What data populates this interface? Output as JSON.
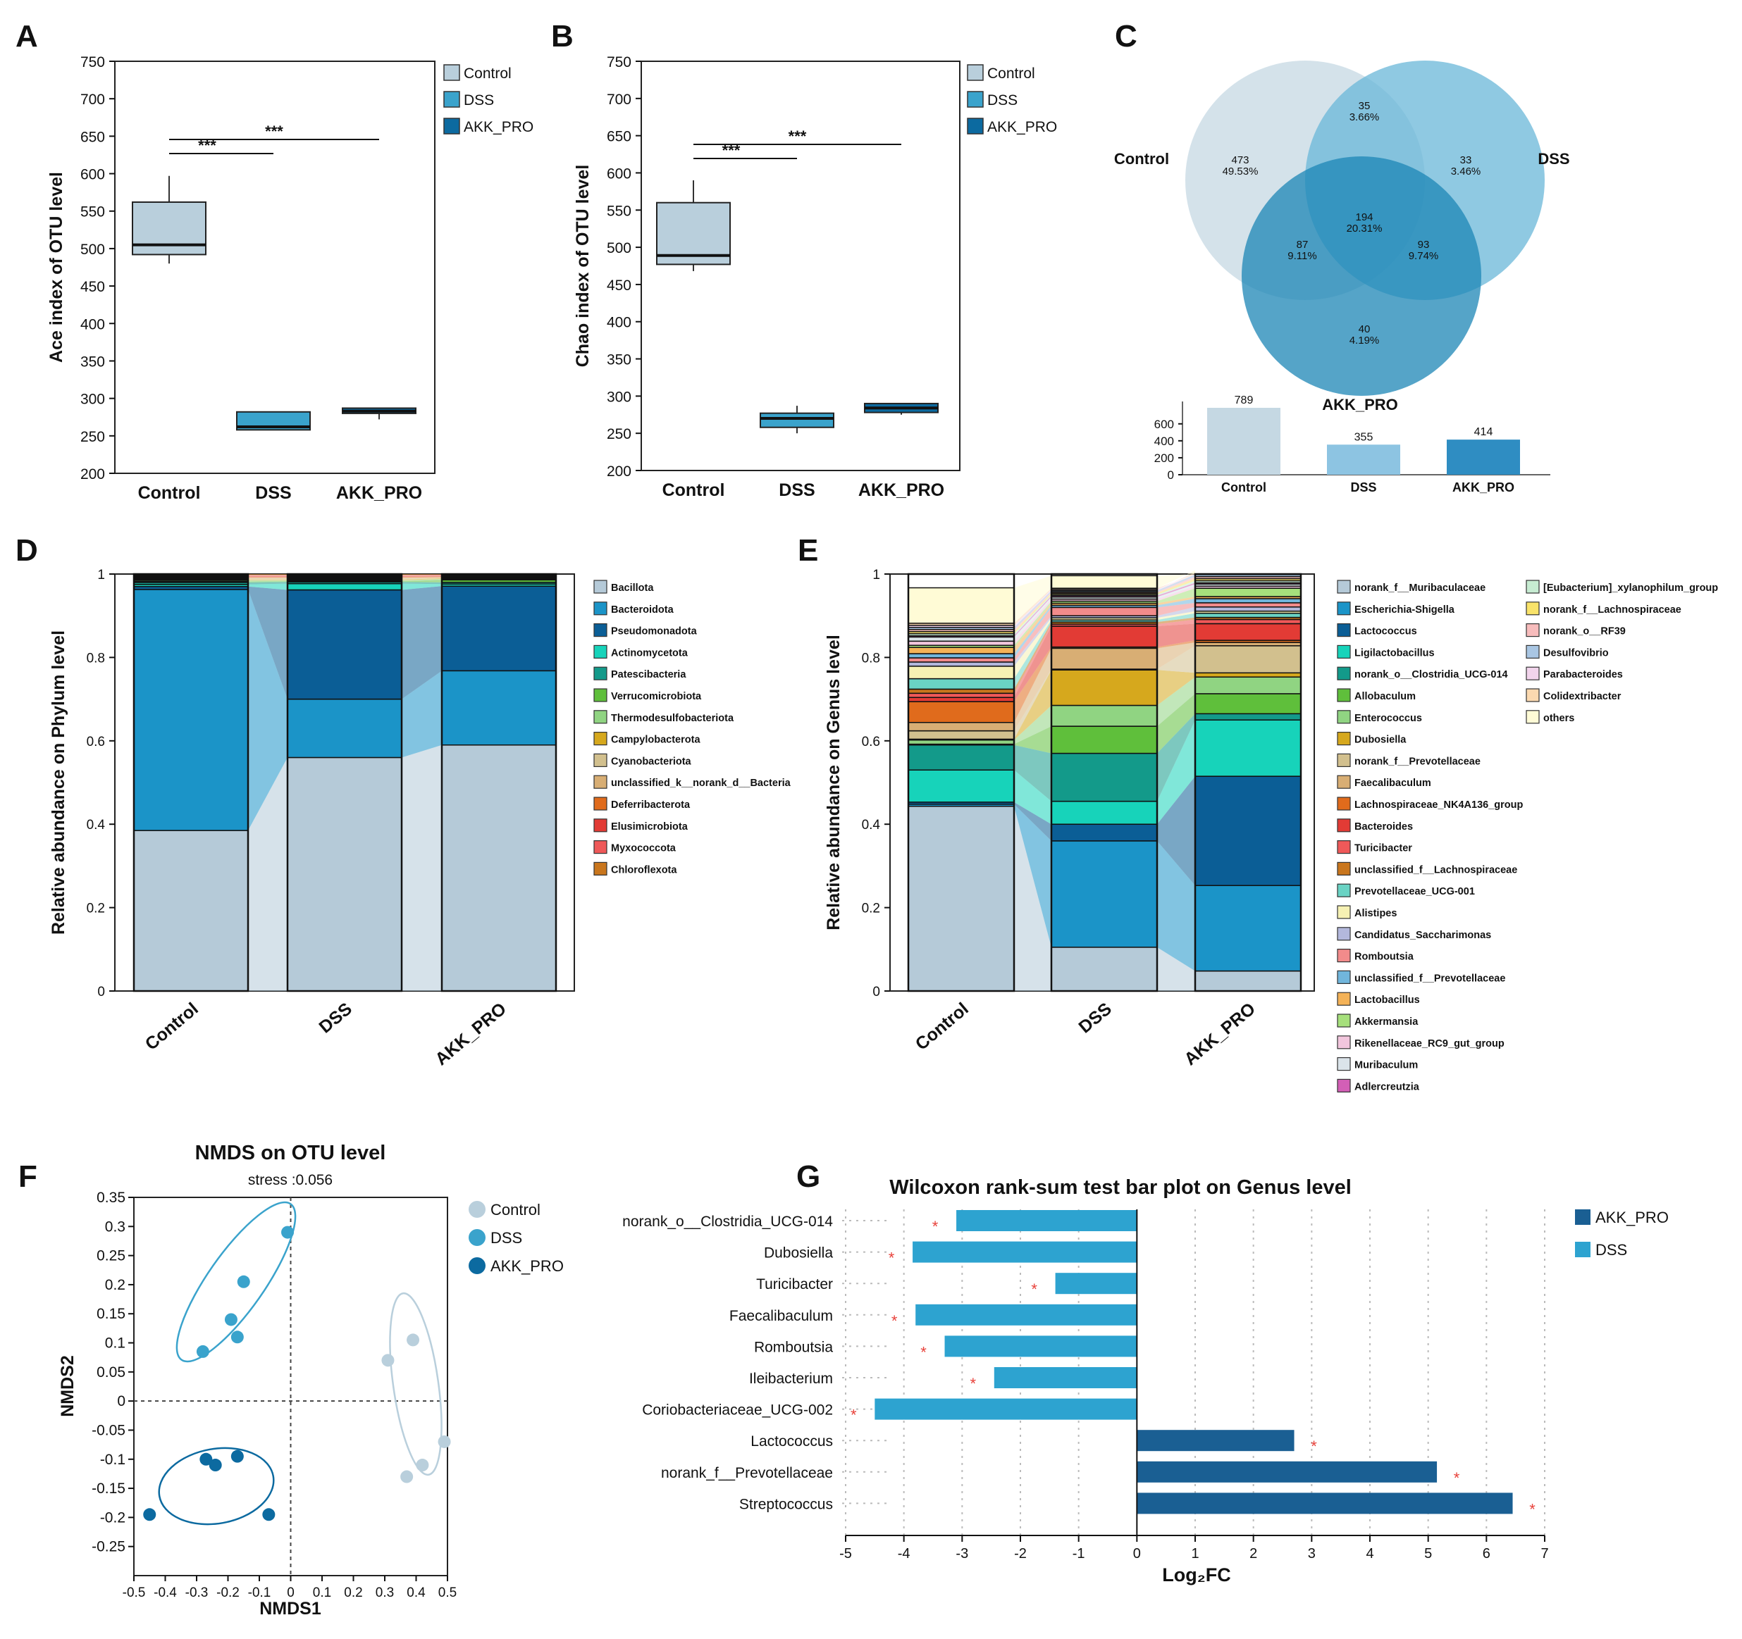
{
  "colors": {
    "control": "#b9cfdc",
    "dss": "#3aa3cc",
    "akk": "#0c6aa0",
    "venn_control": "#c5d8e3",
    "venn_dss": "#6ab7d8",
    "venn_akk": "#1c86b5",
    "g_akk": "#1a5f93",
    "g_dss": "#2da3d0",
    "sig": "#e8413a"
  },
  "chart_data": [
    {
      "panel": "A",
      "type": "box",
      "ylabel": "Ace index of OTU level",
      "yticks": [
        "750",
        "700",
        "650",
        "600",
        "550",
        "500",
        "450",
        "400",
        "350",
        "300",
        "250",
        "200"
      ],
      "ylim": [
        200,
        750
      ],
      "categories": [
        "Control",
        "DSS",
        "AKK_PRO"
      ],
      "boxes": [
        {
          "min": 480,
          "q1": 492,
          "median": 505,
          "q3": 562,
          "max": 597
        },
        {
          "min": 258,
          "q1": 258,
          "median": 262,
          "q3": 282,
          "max": 282
        },
        {
          "min": 272,
          "q1": 280,
          "median": 283,
          "q3": 287,
          "max": 287
        }
      ],
      "legend": [
        "Control",
        "DSS",
        "AKK_PRO"
      ],
      "sig": [
        {
          "label": "***",
          "from": "Control",
          "to": "DSS"
        },
        {
          "label": "***",
          "from": "Control",
          "to": "AKK_PRO"
        }
      ]
    },
    {
      "panel": "B",
      "type": "box",
      "ylabel": "Chao index of OTU level",
      "yticks": [
        "750",
        "700",
        "650",
        "600",
        "550",
        "500",
        "450",
        "400",
        "350",
        "300",
        "250",
        "200"
      ],
      "ylim": [
        200,
        750
      ],
      "categories": [
        "Control",
        "DSS",
        "AKK_PRO"
      ],
      "boxes": [
        {
          "min": 468,
          "q1": 477,
          "median": 489,
          "q3": 560,
          "max": 590
        },
        {
          "min": 250,
          "q1": 258,
          "median": 270,
          "q3": 277,
          "max": 287
        },
        {
          "min": 275,
          "q1": 278,
          "median": 284,
          "q3": 290,
          "max": 290
        }
      ],
      "legend": [
        "Control",
        "DSS",
        "AKK_PRO"
      ],
      "sig": [
        {
          "label": "***",
          "from": "Control",
          "to": "DSS"
        },
        {
          "label": "***",
          "from": "Control",
          "to": "AKK_PRO"
        }
      ]
    },
    {
      "panel": "C",
      "type": "venn",
      "sets": [
        "Control",
        "DSS",
        "AKK_PRO"
      ],
      "regions": [
        {
          "id": "control_only",
          "count": "473",
          "pct": "49.53%"
        },
        {
          "id": "control_dss",
          "count": "35",
          "pct": "3.66%"
        },
        {
          "id": "dss_only",
          "count": "33",
          "pct": "3.46%"
        },
        {
          "id": "all",
          "count": "194",
          "pct": "20.31%"
        },
        {
          "id": "control_akk",
          "count": "87",
          "pct": "9.11%"
        },
        {
          "id": "dss_akk",
          "count": "93",
          "pct": "9.74%"
        },
        {
          "id": "akk_only",
          "count": "40",
          "pct": "4.19%"
        }
      ],
      "totals": {
        "type": "bar",
        "categories": [
          "Control",
          "DSS",
          "AKK_PRO"
        ],
        "values": [
          789,
          355,
          414
        ],
        "labels": [
          "789",
          "355",
          "414"
        ],
        "yticks": [
          "600",
          "400",
          "200",
          "0"
        ],
        "ylim": [
          0,
          789
        ]
      }
    },
    {
      "panel": "D",
      "type": "stacked_bar",
      "ylabel": "Relative abundance on Phylum level",
      "yticks": [
        "1",
        "0.8",
        "0.6",
        "0.4",
        "0.2",
        "0"
      ],
      "categories": [
        "Control",
        "DSS",
        "AKK_PRO"
      ],
      "series": [
        {
          "name": "Bacillota",
          "color": "#b5cad8",
          "values": [
            0.385,
            0.56,
            0.59
          ]
        },
        {
          "name": "Bacteroidota",
          "color": "#1b94c8",
          "values": [
            0.578,
            0.14,
            0.178
          ]
        },
        {
          "name": "Pseudomonadota",
          "color": "#0b5e96",
          "values": [
            0.007,
            0.262,
            0.203
          ]
        },
        {
          "name": "Actinomycetota",
          "color": "#17d3ba",
          "values": [
            0.005,
            0.015,
            0.005
          ]
        },
        {
          "name": "Patescibacteria",
          "color": "#139a8a",
          "values": [
            0.005,
            0.004,
            0.004
          ]
        },
        {
          "name": "Verrucomicrobiota",
          "color": "#5fbf3b",
          "values": [
            0.002,
            0.002,
            0.006
          ]
        },
        {
          "name": "Thermodesulfobacteriota",
          "color": "#90d482",
          "values": [
            0.003,
            0.002,
            0.002
          ]
        },
        {
          "name": "Campylobacterota",
          "color": "#d6a81d",
          "values": [
            0.002,
            0.002,
            0.002
          ]
        },
        {
          "name": "Cyanobacteriota",
          "color": "#d2c08e",
          "values": [
            0.002,
            0.002,
            0.001
          ]
        },
        {
          "name": "unclassified_k__norank_d__Bacteria",
          "color": "#d8ae74",
          "values": [
            0.002,
            0.002,
            0.001
          ]
        },
        {
          "name": "Deferribacterota",
          "color": "#e06b1c",
          "values": [
            0.002,
            0.002,
            0.002
          ]
        },
        {
          "name": "Elusimicrobiota",
          "color": "#e23b35",
          "values": [
            0.002,
            0.002,
            0.002
          ]
        },
        {
          "name": "Myxococcota",
          "color": "#ef5959",
          "values": [
            0.002,
            0.002,
            0.002
          ]
        },
        {
          "name": "Chloroflexota",
          "color": "#c9761d",
          "values": [
            0.003,
            0.004,
            0.002
          ]
        }
      ]
    },
    {
      "panel": "E",
      "type": "stacked_bar",
      "ylabel": "Relative abundance on Genus level",
      "yticks": [
        "1",
        "0.8",
        "0.6",
        "0.4",
        "0.2",
        "0"
      ],
      "categories": [
        "Control",
        "DSS",
        "AKK_PRO"
      ],
      "series": [
        {
          "name": "norank_f__Muribaculaceae",
          "color": "#b5cad8",
          "values": [
            0.443,
            0.105,
            0.048
          ]
        },
        {
          "name": "Escherichia-Shigella",
          "color": "#1b94c8",
          "values": [
            0.005,
            0.255,
            0.205
          ]
        },
        {
          "name": "Lactococcus",
          "color": "#0b5e96",
          "values": [
            0.005,
            0.04,
            0.262
          ]
        },
        {
          "name": "Ligilactobacillus",
          "color": "#17d3ba",
          "values": [
            0.077,
            0.055,
            0.135
          ]
        },
        {
          "name": "norank_o__Clostridia_UCG-014",
          "color": "#139a8a",
          "values": [
            0.06,
            0.115,
            0.015
          ]
        },
        {
          "name": "Allobaculum",
          "color": "#5fbf3b",
          "values": [
            0.002,
            0.065,
            0.048
          ]
        },
        {
          "name": "Enterococcus",
          "color": "#90d482",
          "values": [
            0.01,
            0.05,
            0.04
          ]
        },
        {
          "name": "Dubosiella",
          "color": "#d6a81d",
          "values": [
            0.002,
            0.085,
            0.01
          ]
        },
        {
          "name": "norank_f__Prevotellaceae",
          "color": "#d2c08e",
          "values": [
            0.02,
            0.002,
            0.065
          ]
        },
        {
          "name": "Faecalibaculum",
          "color": "#d8ae74",
          "values": [
            0.02,
            0.05,
            0.008
          ]
        },
        {
          "name": "Lachnospiraceae_NK4A136_group",
          "color": "#e06b1c",
          "values": [
            0.05,
            0.003,
            0.005
          ]
        },
        {
          "name": "Bacteroides",
          "color": "#e23b35",
          "values": [
            0.01,
            0.05,
            0.04
          ]
        },
        {
          "name": "Turicibacter",
          "color": "#ef5959",
          "values": [
            0.01,
            0.005,
            0.01
          ]
        },
        {
          "name": "unclassified_f__Lachnospiraceae",
          "color": "#c9761d",
          "values": [
            0.01,
            0.005,
            0.005
          ]
        },
        {
          "name": "Prevotellaceae_UCG-001",
          "color": "#6ad3c4",
          "values": [
            0.025,
            0.005,
            0.01
          ]
        },
        {
          "name": "Alistipes",
          "color": "#f6f1b3",
          "values": [
            0.03,
            0.005,
            0.005
          ]
        },
        {
          "name": "Candidatus_Saccharimonas",
          "color": "#b3b8dc",
          "values": [
            0.01,
            0.005,
            0.01
          ]
        },
        {
          "name": "Romboutsia",
          "color": "#f28b8b",
          "values": [
            0.01,
            0.02,
            0.01
          ]
        },
        {
          "name": "unclassified_f__Prevotellaceae",
          "color": "#71b6dc",
          "values": [
            0.01,
            0.005,
            0.01
          ]
        },
        {
          "name": "Lactobacillus",
          "color": "#f4b257",
          "values": [
            0.015,
            0.005,
            0.005
          ]
        },
        {
          "name": "Akkermansia",
          "color": "#a6e07c",
          "values": [
            0.005,
            0.005,
            0.02
          ]
        },
        {
          "name": "Rikenellaceae_RC9_gut_group",
          "color": "#f2c6dd",
          "values": [
            0.01,
            0.005,
            0.005
          ]
        },
        {
          "name": "Muribaculum",
          "color": "#dbe4ea",
          "values": [
            0.01,
            0.005,
            0.005
          ]
        },
        {
          "name": "Adlercreutzia",
          "color": "#d35fb6",
          "values": [
            0.003,
            0.003,
            0.003
          ]
        },
        {
          "name": "[Eubacterium]_xylanophilum_group",
          "color": "#c7ecd2",
          "values": [
            0.005,
            0.003,
            0.005
          ]
        },
        {
          "name": "norank_f__Lachnospiraceae",
          "color": "#f9e36a",
          "values": [
            0.005,
            0.003,
            0.005
          ]
        },
        {
          "name": "norank_o__RF39",
          "color": "#f7bcbc",
          "values": [
            0.005,
            0.003,
            0.005
          ]
        },
        {
          "name": "Desulfovibrio",
          "color": "#a9c6e3",
          "values": [
            0.005,
            0.003,
            0.005
          ]
        },
        {
          "name": "Parabacteroides",
          "color": "#f2d4ec",
          "values": [
            0.005,
            0.003,
            0.005
          ]
        },
        {
          "name": "Colidextribacter",
          "color": "#fbd9b0",
          "values": [
            0.005,
            0.003,
            0.005
          ]
        },
        {
          "name": "others",
          "color": "#fffbd6",
          "values": [
            0.085,
            0.03,
            0.005
          ]
        }
      ]
    },
    {
      "panel": "F",
      "type": "scatter",
      "title": "NMDS on OTU level",
      "subtitle": "stress :0.056",
      "xlabel": "NMDS1",
      "ylabel": "NMDS2",
      "xticks": [
        "-0.5",
        "-0.4",
        "-0.3",
        "-0.2",
        "-0.1",
        "0",
        "0.1",
        "0.2",
        "0.3",
        "0.4",
        "0.5"
      ],
      "yticks": [
        "0.35",
        "0.3",
        "0.25",
        "0.2",
        "0.15",
        "0.1",
        "0.05",
        "0",
        "-0.05",
        "-0.1",
        "-0.15",
        "-0.2",
        "-0.25"
      ],
      "xlim": [
        -0.5,
        0.5
      ],
      "ylim": [
        -0.3,
        0.35
      ],
      "series": [
        {
          "name": "Control",
          "points": [
            [
              0.31,
              0.07
            ],
            [
              0.39,
              0.105
            ],
            [
              0.42,
              -0.11
            ],
            [
              0.37,
              -0.13
            ],
            [
              0.49,
              -0.07
            ]
          ]
        },
        {
          "name": "DSS",
          "points": [
            [
              -0.01,
              0.29
            ],
            [
              -0.15,
              0.205
            ],
            [
              -0.19,
              0.14
            ],
            [
              -0.17,
              0.11
            ],
            [
              -0.28,
              0.085
            ]
          ]
        },
        {
          "name": "AKK_PRO",
          "points": [
            [
              -0.27,
              -0.1
            ],
            [
              -0.24,
              -0.11
            ],
            [
              -0.17,
              -0.095
            ],
            [
              -0.07,
              -0.195
            ],
            [
              -0.45,
              -0.195
            ]
          ]
        }
      ]
    },
    {
      "panel": "G",
      "type": "bar",
      "orientation": "horizontal",
      "title": "Wilcoxon rank-sum test bar plot on Genus level",
      "xlabel": "Log₂FC",
      "xticks": [
        "-5",
        "-4",
        "-3",
        "-2",
        "-1",
        "0",
        "1",
        "2",
        "3",
        "4",
        "5",
        "6",
        "7"
      ],
      "xlim": [
        -5,
        7
      ],
      "categories": [
        "norank_o__Clostridia_UCG-014",
        "Dubosiella",
        "Turicibacter",
        "Faecalibaculum",
        "Romboutsia",
        "Ileibacterium",
        "Coriobacteriaceae_UCG-002",
        "Lactococcus",
        "norank_f__Prevotellaceae",
        "Streptococcus"
      ],
      "values": [
        -3.1,
        -3.85,
        -1.4,
        -3.8,
        -3.3,
        -2.45,
        -4.5,
        2.7,
        5.15,
        6.45
      ],
      "groups": [
        "DSS",
        "DSS",
        "DSS",
        "DSS",
        "DSS",
        "DSS",
        "DSS",
        "AKK_PRO",
        "AKK_PRO",
        "AKK_PRO"
      ],
      "sig": "*",
      "legend": [
        "AKK_PRO",
        "DSS"
      ]
    }
  ],
  "panel_labels": [
    "A",
    "B",
    "C",
    "D",
    "E",
    "F",
    "G"
  ]
}
